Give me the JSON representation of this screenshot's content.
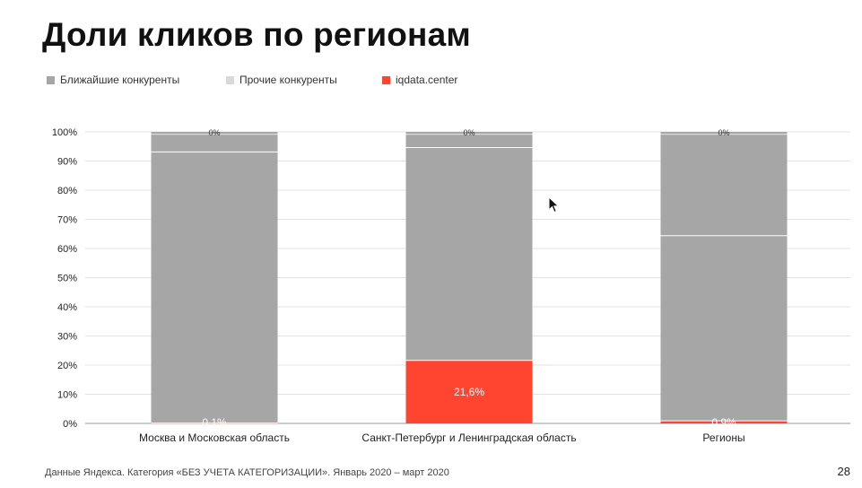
{
  "title": "Доли кликов по регионам",
  "legend": [
    {
      "label": "Ближайшие конкуренты",
      "color": "#a6a6a7"
    },
    {
      "label": "Прочие конкуренты",
      "color": "#d9d9d9"
    },
    {
      "label": "iqdata.center",
      "color": "#ff4530"
    }
  ],
  "chart_data": {
    "type": "bar",
    "stacked": true,
    "categories": [
      "Москва и Московская область",
      "Санкт-Петербург и Ленинградская область",
      "Регионы"
    ],
    "y_ticks": [
      "0%",
      "10%",
      "20%",
      "30%",
      "40%",
      "50%",
      "60%",
      "70%",
      "80%",
      "90%",
      "100%"
    ],
    "ylim": [
      0,
      100
    ],
    "series": [
      {
        "name": "iqdata.center",
        "color": "#ff4530",
        "values": [
          0.1,
          21.6,
          0.9
        ],
        "labels": [
          "0,1%",
          "21,6%",
          "0,9%"
        ]
      },
      {
        "name": "Ближайшие конкуренты",
        "color": "#a6a6a7",
        "values": [
          93.0,
          73.0,
          63.5
        ]
      },
      {
        "name": "Прочие конкуренты",
        "color": "#a6a6a7",
        "values": [
          6.9,
          5.4,
          35.6
        ]
      }
    ],
    "top_labels": [
      "0%",
      "0%",
      "0%"
    ],
    "grid": true
  },
  "footer": "Данные Яндекса. Категория «БЕЗ УЧЕТА КАТЕГОРИЗАЦИИ». Январь 2020 – март 2020",
  "page_number": "28",
  "icons": {
    "cursor": "mouse-pointer-icon"
  }
}
